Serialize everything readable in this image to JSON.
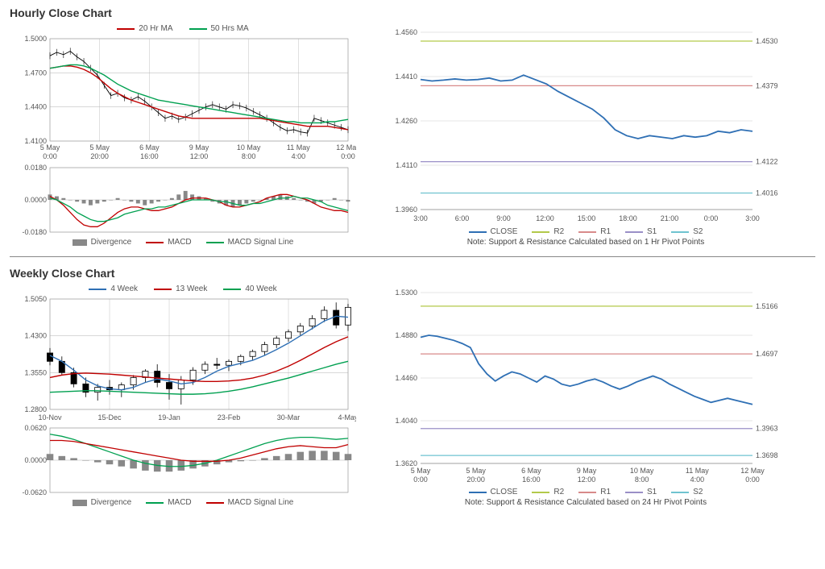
{
  "hourly": {
    "title": "Hourly Close Chart",
    "price": {
      "type": "line",
      "ylim": [
        1.41,
        1.5
      ],
      "yticks": [
        1.41,
        1.44,
        1.47,
        1.5
      ],
      "xlabels": [
        [
          "5 May",
          "0:00"
        ],
        [
          "5 May",
          "20:00"
        ],
        [
          "6 May",
          "16:00"
        ],
        [
          "9 May",
          "12:00"
        ],
        [
          "10 May",
          "8:00"
        ],
        [
          "11 May",
          "4:00"
        ],
        [
          "12 May",
          "0:00"
        ]
      ],
      "grid_color": "#b0b0b0",
      "close_color": "#000000",
      "ma20_color": "#c00000",
      "ma50_color": "#00a050",
      "close": [
        1.485,
        1.488,
        1.486,
        1.489,
        1.484,
        1.48,
        1.474,
        1.468,
        1.459,
        1.45,
        1.452,
        1.448,
        1.446,
        1.449,
        1.445,
        1.44,
        1.435,
        1.43,
        1.432,
        1.429,
        1.431,
        1.434,
        1.437,
        1.44,
        1.442,
        1.44,
        1.438,
        1.442,
        1.441,
        1.439,
        1.436,
        1.433,
        1.43,
        1.426,
        1.422,
        1.419,
        1.42,
        1.418,
        1.417,
        1.43,
        1.428,
        1.426,
        1.424,
        1.422,
        1.42
      ],
      "ma20": [
        1.474,
        1.475,
        1.476,
        1.476,
        1.475,
        1.473,
        1.47,
        1.466,
        1.461,
        1.456,
        1.452,
        1.449,
        1.446,
        1.444,
        1.442,
        1.44,
        1.438,
        1.436,
        1.434,
        1.432,
        1.431,
        1.43,
        1.43,
        1.43,
        1.43,
        1.43,
        1.43,
        1.43,
        1.43,
        1.43,
        1.43,
        1.43,
        1.429,
        1.428,
        1.427,
        1.426,
        1.425,
        1.424,
        1.423,
        1.423,
        1.423,
        1.423,
        1.422,
        1.421,
        1.42
      ],
      "ma50": [
        1.474,
        1.475,
        1.476,
        1.477,
        1.477,
        1.476,
        1.474,
        1.471,
        1.468,
        1.464,
        1.46,
        1.457,
        1.454,
        1.452,
        1.45,
        1.448,
        1.446,
        1.445,
        1.444,
        1.443,
        1.442,
        1.441,
        1.44,
        1.439,
        1.438,
        1.437,
        1.436,
        1.435,
        1.434,
        1.433,
        1.432,
        1.431,
        1.43,
        1.429,
        1.428,
        1.427,
        1.427,
        1.426,
        1.426,
        1.426,
        1.426,
        1.427,
        1.427,
        1.428,
        1.429
      ],
      "legend": {
        "ma20": "20 Hr MA",
        "ma50": "50 Hrs MA"
      }
    },
    "macd": {
      "type": "bar+line",
      "ylim": [
        -0.018,
        0.018
      ],
      "yticks": [
        -0.018,
        0.0,
        0.018
      ],
      "bar_color": "#888888",
      "macd_color": "#c00000",
      "signal_color": "#00a050",
      "divergence": [
        0.003,
        0.002,
        0.001,
        0.0,
        -0.001,
        -0.002,
        -0.003,
        -0.002,
        -0.001,
        0.0,
        0.001,
        0.0,
        -0.001,
        -0.002,
        -0.003,
        -0.002,
        -0.001,
        0.0,
        0.001,
        0.003,
        0.005,
        0.003,
        0.002,
        0.001,
        -0.001,
        -0.002,
        -0.003,
        -0.004,
        -0.003,
        -0.002,
        -0.001,
        0.0,
        0.001,
        0.002,
        0.003,
        0.002,
        0.001,
        0.0,
        -0.001,
        -0.002,
        -0.001,
        0.0,
        0.001,
        0.0,
        -0.001
      ],
      "macd_line": [
        0.002,
        0.0,
        -0.003,
        -0.007,
        -0.011,
        -0.014,
        -0.015,
        -0.015,
        -0.013,
        -0.01,
        -0.007,
        -0.005,
        -0.004,
        -0.004,
        -0.005,
        -0.006,
        -0.006,
        -0.005,
        -0.004,
        -0.002,
        0.0,
        0.001,
        0.001,
        0.001,
        0.0,
        -0.001,
        -0.003,
        -0.004,
        -0.004,
        -0.003,
        -0.002,
        -0.001,
        0.001,
        0.002,
        0.003,
        0.003,
        0.002,
        0.001,
        0.0,
        -0.002,
        -0.004,
        -0.005,
        -0.006,
        -0.006,
        -0.007
      ],
      "signal": [
        0.001,
        0.0,
        -0.002,
        -0.004,
        -0.007,
        -0.009,
        -0.011,
        -0.012,
        -0.012,
        -0.011,
        -0.01,
        -0.008,
        -0.007,
        -0.006,
        -0.005,
        -0.005,
        -0.004,
        -0.004,
        -0.003,
        -0.002,
        -0.001,
        0.0,
        0.0,
        0.0,
        0.0,
        -0.001,
        -0.001,
        -0.002,
        -0.003,
        -0.003,
        -0.002,
        -0.002,
        -0.001,
        0.0,
        0.001,
        0.001,
        0.002,
        0.001,
        0.001,
        0.0,
        -0.001,
        -0.003,
        -0.004,
        -0.005,
        -0.006
      ],
      "legend": {
        "div": "Divergence",
        "macd": "MACD",
        "signal": "MACD Signal Line"
      }
    },
    "sr": {
      "type": "line",
      "ylim": [
        1.396,
        1.456
      ],
      "yticks": [
        1.396,
        1.411,
        1.426,
        1.441,
        1.456
      ],
      "xlabels": [
        "3:00",
        "6:00",
        "9:00",
        "12:00",
        "15:00",
        "18:00",
        "21:00",
        "0:00",
        "3:00"
      ],
      "close_color": "#2e6fb4",
      "r2_color": "#b3c94a",
      "r1_color": "#d88a8a",
      "s1_color": "#9a8fc7",
      "s2_color": "#6fc3d0",
      "levels": {
        "r2": 1.453,
        "r1": 1.4379,
        "s1": 1.4122,
        "s2": 1.4016
      },
      "level_labels": {
        "r2": "1.4530",
        "r1": "1.4379",
        "s1": "1.4122",
        "s2": "1.4016"
      },
      "close": [
        1.44,
        1.4395,
        1.4398,
        1.4402,
        1.4398,
        1.44,
        1.4405,
        1.4395,
        1.4398,
        1.4415,
        1.44,
        1.4385,
        1.436,
        1.434,
        1.432,
        1.43,
        1.427,
        1.423,
        1.421,
        1.42,
        1.421,
        1.4205,
        1.42,
        1.421,
        1.4205,
        1.421,
        1.4225,
        1.422,
        1.423,
        1.4225
      ],
      "legend": {
        "close": "CLOSE",
        "r2": "R2",
        "r1": "R1",
        "s1": "S1",
        "s2": "S2"
      },
      "note": "Note: Support & Resistance Calculated based on 1 Hr Pivot Points"
    }
  },
  "weekly": {
    "title": "Weekly Close Chart",
    "price": {
      "type": "candlestick+line",
      "ylim": [
        1.28,
        1.505
      ],
      "yticks": [
        1.28,
        1.355,
        1.43,
        1.505
      ],
      "xlabels": [
        "10-Nov",
        "15-Dec",
        "19-Jan",
        "23-Feb",
        "30-Mar",
        "4-May"
      ],
      "grid_color": "#b0b0b0",
      "w4_color": "#2e6fb4",
      "w13_color": "#c00000",
      "w40_color": "#00a050",
      "candles": [
        {
          "o": 1.395,
          "h": 1.405,
          "l": 1.37,
          "c": 1.378
        },
        {
          "o": 1.378,
          "h": 1.388,
          "l": 1.35,
          "c": 1.355
        },
        {
          "o": 1.355,
          "h": 1.365,
          "l": 1.325,
          "c": 1.332
        },
        {
          "o": 1.332,
          "h": 1.345,
          "l": 1.305,
          "c": 1.315
        },
        {
          "o": 1.315,
          "h": 1.332,
          "l": 1.298,
          "c": 1.325
        },
        {
          "o": 1.325,
          "h": 1.34,
          "l": 1.31,
          "c": 1.32
        },
        {
          "o": 1.32,
          "h": 1.335,
          "l": 1.305,
          "c": 1.33
        },
        {
          "o": 1.33,
          "h": 1.35,
          "l": 1.32,
          "c": 1.345
        },
        {
          "o": 1.345,
          "h": 1.362,
          "l": 1.335,
          "c": 1.358
        },
        {
          "o": 1.358,
          "h": 1.372,
          "l": 1.325,
          "c": 1.335
        },
        {
          "o": 1.335,
          "h": 1.352,
          "l": 1.3,
          "c": 1.322
        },
        {
          "o": 1.322,
          "h": 1.348,
          "l": 1.29,
          "c": 1.34
        },
        {
          "o": 1.34,
          "h": 1.366,
          "l": 1.33,
          "c": 1.36
        },
        {
          "o": 1.36,
          "h": 1.378,
          "l": 1.352,
          "c": 1.372
        },
        {
          "o": 1.372,
          "h": 1.385,
          "l": 1.362,
          "c": 1.37
        },
        {
          "o": 1.37,
          "h": 1.382,
          "l": 1.358,
          "c": 1.378
        },
        {
          "o": 1.378,
          "h": 1.392,
          "l": 1.37,
          "c": 1.388
        },
        {
          "o": 1.388,
          "h": 1.402,
          "l": 1.38,
          "c": 1.398
        },
        {
          "o": 1.398,
          "h": 1.418,
          "l": 1.39,
          "c": 1.412
        },
        {
          "o": 1.412,
          "h": 1.43,
          "l": 1.405,
          "c": 1.425
        },
        {
          "o": 1.425,
          "h": 1.443,
          "l": 1.418,
          "c": 1.438
        },
        {
          "o": 1.438,
          "h": 1.456,
          "l": 1.43,
          "c": 1.45
        },
        {
          "o": 1.45,
          "h": 1.472,
          "l": 1.443,
          "c": 1.465
        },
        {
          "o": 1.465,
          "h": 1.49,
          "l": 1.458,
          "c": 1.482
        },
        {
          "o": 1.482,
          "h": 1.498,
          "l": 1.445,
          "c": 1.452
        },
        {
          "o": 1.452,
          "h": 1.495,
          "l": 1.44,
          "c": 1.488
        }
      ],
      "w4": [
        1.39,
        1.378,
        1.36,
        1.34,
        1.328,
        1.322,
        1.32,
        1.325,
        1.335,
        1.342,
        1.338,
        1.332,
        1.335,
        1.345,
        1.358,
        1.368,
        1.374,
        1.38,
        1.39,
        1.402,
        1.415,
        1.43,
        1.445,
        1.46,
        1.47,
        1.468
      ],
      "w13": [
        1.345,
        1.35,
        1.353,
        1.354,
        1.353,
        1.352,
        1.35,
        1.348,
        1.346,
        1.344,
        1.342,
        1.34,
        1.338,
        1.337,
        1.337,
        1.338,
        1.34,
        1.344,
        1.35,
        1.358,
        1.368,
        1.38,
        1.393,
        1.406,
        1.418,
        1.428
      ],
      "w40": [
        1.315,
        1.316,
        1.317,
        1.318,
        1.318,
        1.317,
        1.316,
        1.315,
        1.314,
        1.313,
        1.312,
        1.311,
        1.311,
        1.312,
        1.314,
        1.317,
        1.321,
        1.326,
        1.332,
        1.338,
        1.344,
        1.351,
        1.358,
        1.365,
        1.372,
        1.378
      ],
      "legend": {
        "w4": "4 Week",
        "w13": "13 Week",
        "w40": "40 Week"
      }
    },
    "macd": {
      "type": "bar+line",
      "ylim": [
        -0.062,
        0.062
      ],
      "yticks": [
        -0.062,
        0.0,
        0.062
      ],
      "bar_color": "#888888",
      "macd_color": "#00a050",
      "signal_color": "#c00000",
      "divergence": [
        0.012,
        0.008,
        0.004,
        0.0,
        -0.004,
        -0.008,
        -0.012,
        -0.016,
        -0.02,
        -0.022,
        -0.022,
        -0.02,
        -0.016,
        -0.012,
        -0.008,
        -0.004,
        -0.002,
        0.0,
        0.004,
        0.008,
        0.012,
        0.016,
        0.018,
        0.018,
        0.016,
        0.012
      ],
      "macd_line": [
        0.05,
        0.046,
        0.04,
        0.032,
        0.024,
        0.016,
        0.008,
        0.0,
        -0.006,
        -0.01,
        -0.012,
        -0.012,
        -0.01,
        -0.006,
        0.0,
        0.008,
        0.016,
        0.024,
        0.032,
        0.038,
        0.042,
        0.044,
        0.044,
        0.042,
        0.04,
        0.042
      ],
      "signal": [
        0.038,
        0.038,
        0.036,
        0.032,
        0.028,
        0.024,
        0.02,
        0.016,
        0.012,
        0.008,
        0.004,
        0.0,
        -0.002,
        -0.002,
        -0.002,
        0.0,
        0.004,
        0.01,
        0.016,
        0.022,
        0.026,
        0.028,
        0.026,
        0.024,
        0.024,
        0.03
      ],
      "legend": {
        "div": "Divergence",
        "macd": "MACD",
        "signal": "MACD Signal Line"
      }
    },
    "sr": {
      "type": "line",
      "ylim": [
        1.362,
        1.53
      ],
      "yticks": [
        1.362,
        1.404,
        1.446,
        1.488,
        1.53
      ],
      "xlabels": [
        [
          "5 May",
          "0:00"
        ],
        [
          "5 May",
          "20:00"
        ],
        [
          "6 May",
          "16:00"
        ],
        [
          "9 May",
          "12:00"
        ],
        [
          "10 May",
          "8:00"
        ],
        [
          "11 May",
          "4:00"
        ],
        [
          "12 May",
          "0:00"
        ]
      ],
      "close_color": "#2e6fb4",
      "r2_color": "#b3c94a",
      "r1_color": "#d88a8a",
      "s1_color": "#9a8fc7",
      "s2_color": "#6fc3d0",
      "levels": {
        "r2": 1.5166,
        "r1": 1.4697,
        "s1": 1.3963,
        "s2": 1.3698
      },
      "level_labels": {
        "r2": "1.5166",
        "r1": "1.4697",
        "s1": "1.3963",
        "s2": "1.3698"
      },
      "close": [
        1.486,
        1.488,
        1.487,
        1.485,
        1.483,
        1.48,
        1.476,
        1.46,
        1.45,
        1.443,
        1.448,
        1.452,
        1.45,
        1.446,
        1.442,
        1.448,
        1.445,
        1.44,
        1.438,
        1.44,
        1.443,
        1.445,
        1.442,
        1.438,
        1.435,
        1.438,
        1.442,
        1.445,
        1.448,
        1.445,
        1.44,
        1.436,
        1.432,
        1.428,
        1.425,
        1.422,
        1.424,
        1.426,
        1.424,
        1.422,
        1.42
      ],
      "legend": {
        "close": "CLOSE",
        "r2": "R2",
        "r1": "R1",
        "s1": "S1",
        "s2": "S2"
      },
      "note": "Note: Support & Resistance Calculated based on 24 Hr Pivot Points"
    }
  }
}
